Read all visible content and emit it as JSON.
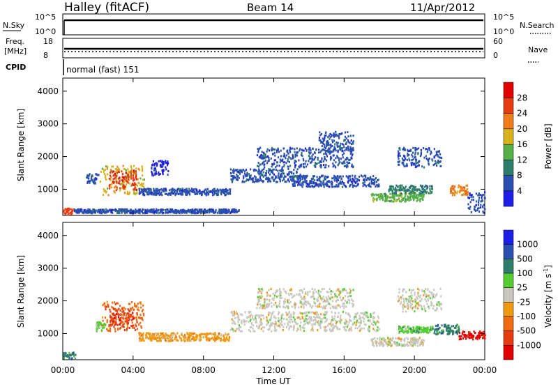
{
  "header": {
    "station": "Halley (fitACF)",
    "beam": "Beam 14",
    "date": "11/Apr/2012"
  },
  "strip_labels": {
    "nsky": "N.Sky",
    "nsky_top": "10^5",
    "nsky_bottom": "10^0",
    "nsearch": "N.Search",
    "nsearch_top": "10^5",
    "nsearch_bottom": "10^0",
    "freq": "Freq.",
    "freq_unit": "[MHz]",
    "freq_top": "18",
    "freq_bottom": "8",
    "nave": "Nave",
    "nave_top": "60",
    "nave_bottom": "0",
    "cpid": "CPID",
    "cpid_value": "normal (fast) 151"
  },
  "chart_data": [
    {
      "type": "heatmap",
      "panel": "power",
      "ylabel": "Slant Range [km]",
      "ylim": [
        200,
        4400
      ],
      "yticks": [
        1000,
        2000,
        3000,
        4000
      ],
      "xticks": [
        "00:00",
        "04:00",
        "08:00",
        "12:00",
        "16:00",
        "20:00",
        "00:00"
      ],
      "xlim_hours": [
        0,
        24
      ],
      "colorbar": {
        "label": "Power [dB]",
        "ticks": [
          "4",
          "8",
          "12",
          "16",
          "20",
          "24",
          "28"
        ],
        "colors": [
          "#1e1ee6",
          "#2a4fb0",
          "#2e7d6a",
          "#55b049",
          "#d9b21c",
          "#ef7d1a",
          "#e63b13",
          "#e00000"
        ]
      },
      "regions": [
        {
          "x0": 0.0,
          "x1": 0.6,
          "y0": 250,
          "y1": 450,
          "level": 6
        },
        {
          "x0": 0.6,
          "x1": 10.0,
          "y0": 300,
          "y1": 420,
          "level": 1
        },
        {
          "x0": 1.3,
          "x1": 2.0,
          "y0": 1200,
          "y1": 1500,
          "level": 1
        },
        {
          "x0": 2.1,
          "x1": 4.6,
          "y0": 850,
          "y1": 1750,
          "level": 4
        },
        {
          "x0": 2.6,
          "x1": 4.2,
          "y0": 1000,
          "y1": 1600,
          "level": 6
        },
        {
          "x0": 4.3,
          "x1": 9.5,
          "y0": 850,
          "y1": 1050,
          "level": 1
        },
        {
          "x0": 5.0,
          "x1": 6.0,
          "y0": 1450,
          "y1": 1900,
          "level": 0
        },
        {
          "x0": 9.5,
          "x1": 13.5,
          "y0": 1250,
          "y1": 1650,
          "level": 1
        },
        {
          "x0": 11.0,
          "x1": 16.5,
          "y0": 1700,
          "y1": 2300,
          "level": 1
        },
        {
          "x0": 13.0,
          "x1": 18.0,
          "y0": 1100,
          "y1": 1450,
          "level": 1
        },
        {
          "x0": 14.5,
          "x1": 16.5,
          "y0": 2200,
          "y1": 2800,
          "level": 1
        },
        {
          "x0": 17.5,
          "x1": 20.5,
          "y0": 650,
          "y1": 900,
          "level": 3
        },
        {
          "x0": 18.5,
          "x1": 21.0,
          "y0": 900,
          "y1": 1150,
          "level": 2
        },
        {
          "x0": 19.0,
          "x1": 21.5,
          "y0": 1700,
          "y1": 2300,
          "level": 1
        },
        {
          "x0": 22.0,
          "x1": 23.0,
          "y0": 850,
          "y1": 1150,
          "level": 5
        },
        {
          "x0": 23.0,
          "x1": 24.0,
          "y0": 300,
          "y1": 1000,
          "level": 1
        }
      ]
    },
    {
      "type": "heatmap",
      "panel": "velocity",
      "ylabel": "Slant Range [km]",
      "ylim": [
        200,
        4400
      ],
      "yticks": [
        1000,
        2000,
        3000,
        4000
      ],
      "xticks": [
        "00:00",
        "04:00",
        "08:00",
        "12:00",
        "16:00",
        "20:00",
        "00:00"
      ],
      "xlabel": "Time UT",
      "colorbar": {
        "label": "Velocity [m s-1]",
        "ticks": [
          "1000",
          "500",
          "100",
          "25",
          "-25",
          "-100",
          "-500",
          "-1000"
        ],
        "colors": [
          "#1e1ee6",
          "#2a4fb0",
          "#2e7d6a",
          "#55cc30",
          "#c8c8c0",
          "#ef9a10",
          "#ef6a10",
          "#e63b13",
          "#e00000"
        ]
      },
      "regions": [
        {
          "x0": 0.0,
          "x1": 0.7,
          "y0": 250,
          "y1": 450,
          "level": 2
        },
        {
          "x0": 1.8,
          "x1": 2.4,
          "y0": 1100,
          "y1": 1400,
          "level": 3
        },
        {
          "x0": 2.2,
          "x1": 4.6,
          "y0": 1100,
          "y1": 2000,
          "level": 6
        },
        {
          "x0": 2.6,
          "x1": 4.2,
          "y0": 1200,
          "y1": 1800,
          "level": 7
        },
        {
          "x0": 4.3,
          "x1": 9.5,
          "y0": 800,
          "y1": 1050,
          "level": 5
        },
        {
          "x0": 9.5,
          "x1": 18.0,
          "y0": 1100,
          "y1": 1700,
          "level": 4
        },
        {
          "x0": 11.0,
          "x1": 16.5,
          "y0": 1800,
          "y1": 2400,
          "level": 4
        },
        {
          "x0": 17.5,
          "x1": 20.5,
          "y0": 650,
          "y1": 900,
          "level": 4
        },
        {
          "x0": 19.0,
          "x1": 21.0,
          "y0": 1050,
          "y1": 1250,
          "level": 3
        },
        {
          "x0": 21.0,
          "x1": 22.5,
          "y0": 1000,
          "y1": 1300,
          "level": 2
        },
        {
          "x0": 22.5,
          "x1": 24.0,
          "y0": 850,
          "y1": 1100,
          "level": 8
        },
        {
          "x0": 19.0,
          "x1": 21.5,
          "y0": 1700,
          "y1": 2400,
          "level": 4
        }
      ]
    }
  ]
}
